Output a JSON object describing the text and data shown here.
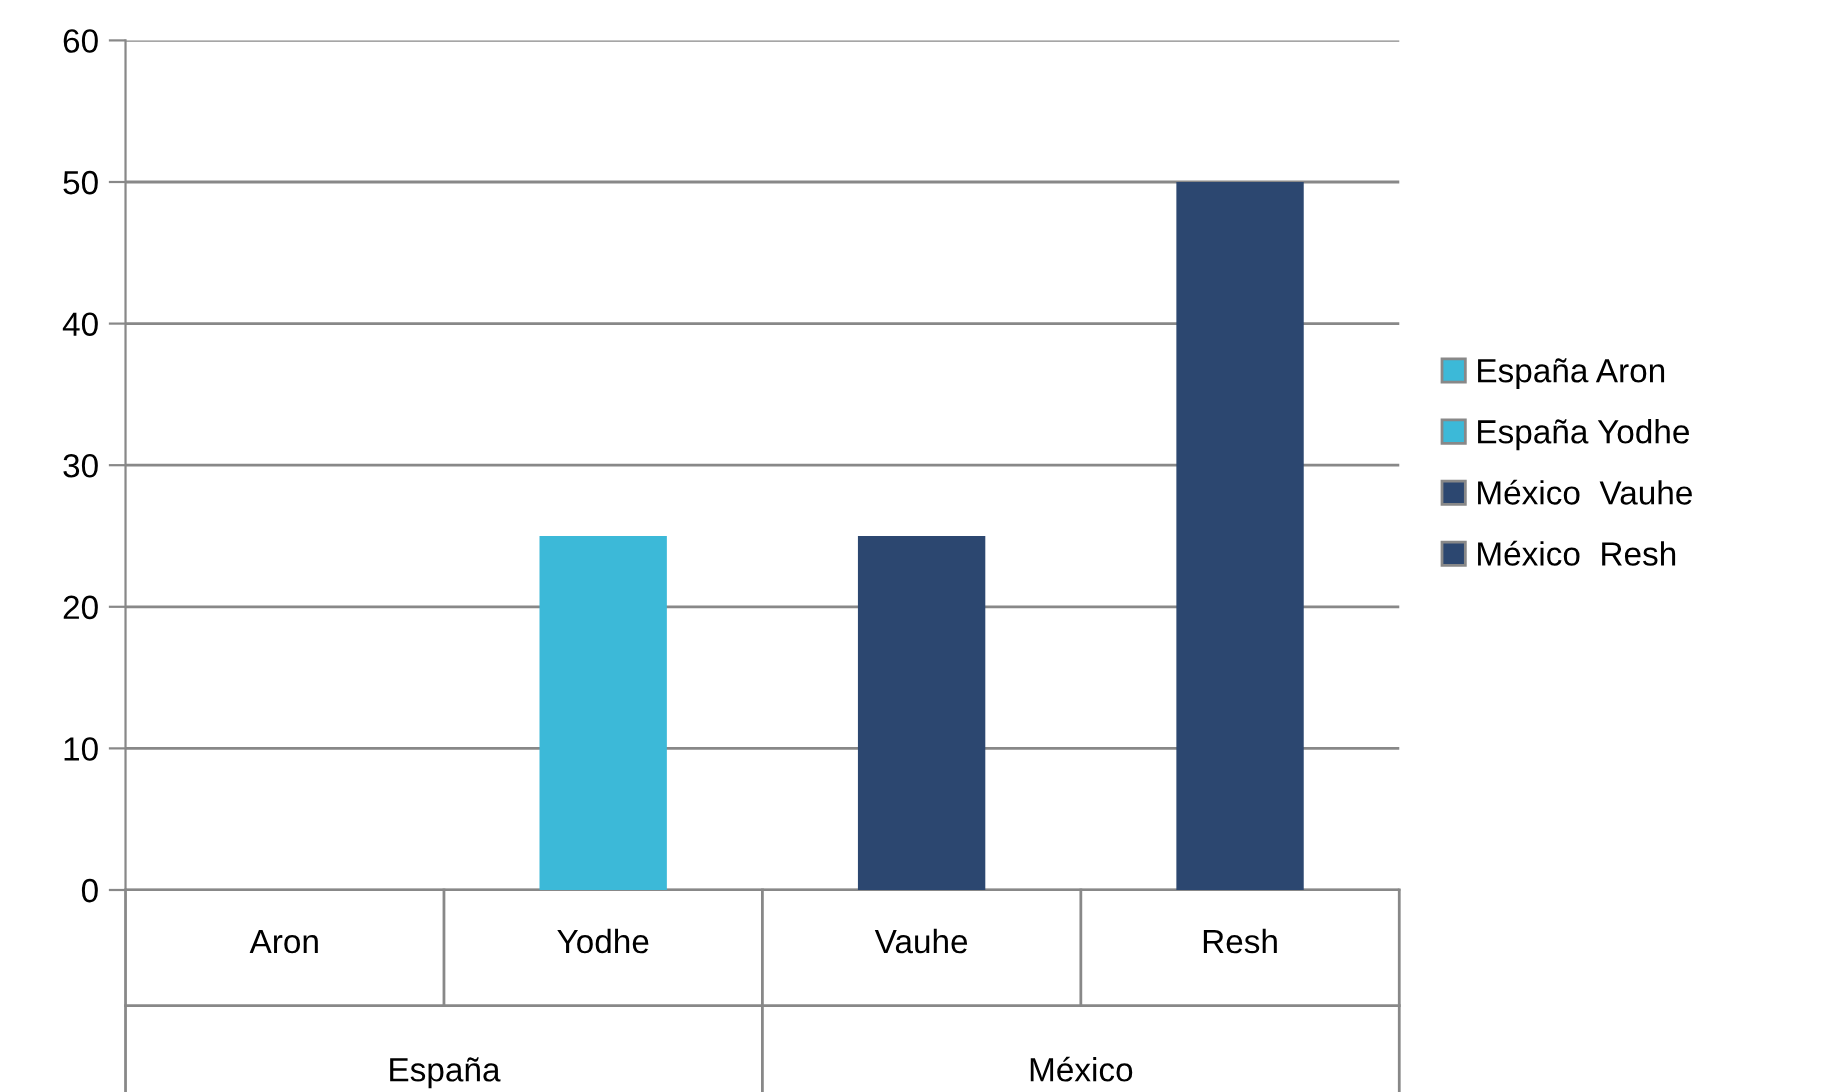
{
  "chart_data": {
    "type": "bar",
    "categories": [
      "Aron",
      "Yodhe",
      "Vauhe",
      "Resh"
    ],
    "series": [
      {
        "name": "España Aron",
        "color": "#3cb9d8",
        "values": [
          0,
          null,
          null,
          null
        ]
      },
      {
        "name": "España Yodhe",
        "color": "#3cb9d8",
        "values": [
          null,
          25,
          null,
          null
        ]
      },
      {
        "name": "México  Vauhe",
        "color": "#2c4770",
        "values": [
          null,
          null,
          25,
          null
        ]
      },
      {
        "name": "México  Resh",
        "color": "#2c4770",
        "values": [
          null,
          null,
          null,
          50
        ]
      }
    ],
    "annotations": [
      "España",
      "México"
    ],
    "ylim": [
      0,
      60
    ],
    "yticks": [
      0,
      10,
      20,
      30,
      40,
      50,
      60
    ],
    "grid": "y",
    "legend": "right"
  }
}
